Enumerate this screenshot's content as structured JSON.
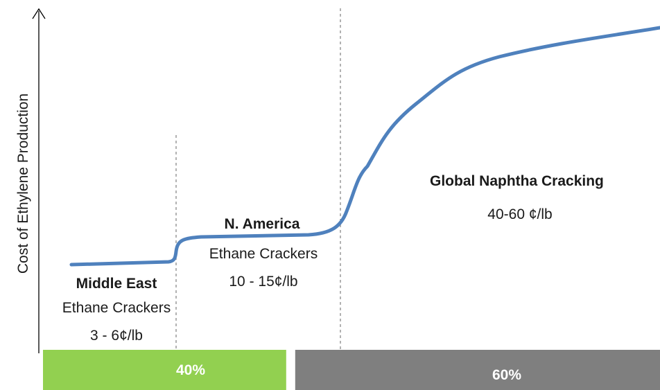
{
  "chart_data": {
    "type": "line",
    "title": "",
    "xlabel": "",
    "ylabel": "Cost of Ethylene Production",
    "colors": {
      "curve": "#4f81bd",
      "bar_left": "#92d050",
      "bar_right": "#7f7f7f",
      "divider": "#7f7f7f",
      "axis": "#000000"
    },
    "regions": [
      {
        "name": "Middle East",
        "description": "Ethane Crackers",
        "cost": "3 - 6¢/lb"
      },
      {
        "name": "N. America",
        "description": "Ethane Crackers",
        "cost": "10 - 15¢/lb"
      },
      {
        "name": "Global Naphtha Cracking",
        "description": "",
        "cost": "40-60 ¢/lb"
      }
    ],
    "share_bars": [
      {
        "label": "40%",
        "value": 40
      },
      {
        "label": "60%",
        "value": 60
      }
    ]
  }
}
